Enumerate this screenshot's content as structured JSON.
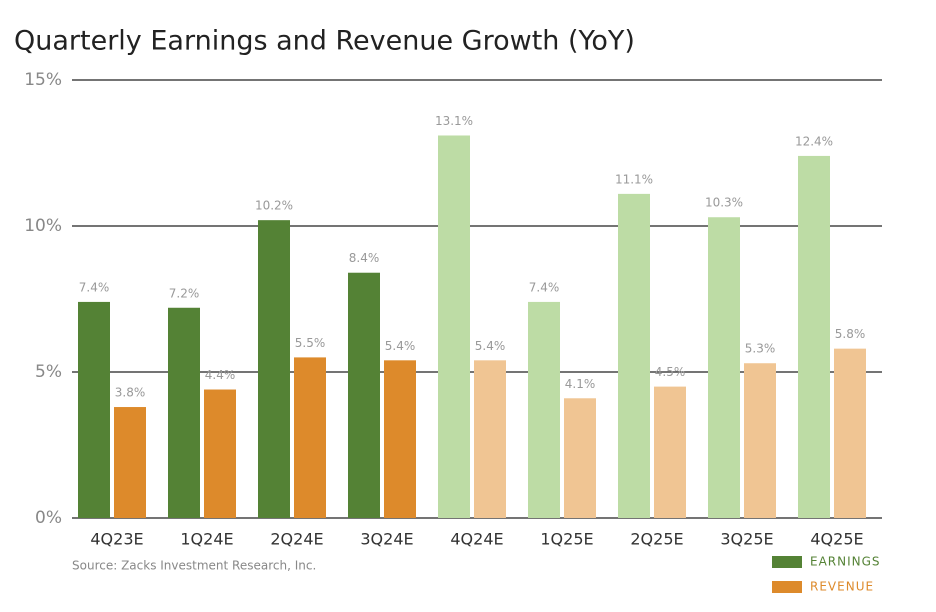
{
  "chart_data": {
    "type": "bar",
    "title": "Quarterly Earnings and Revenue Growth (YoY)",
    "categories": [
      "4Q23E",
      "1Q24E",
      "2Q24E",
      "3Q24E",
      "4Q24E",
      "1Q25E",
      "2Q25E",
      "3Q25E",
      "4Q25E"
    ],
    "series": [
      {
        "name": "EARNINGS",
        "color": "#548235",
        "colors": [
          "#548235",
          "#548235",
          "#548235",
          "#548235",
          "#bddca5",
          "#bddca5",
          "#bddca5",
          "#bddca5",
          "#bddca5"
        ],
        "values": [
          7.4,
          7.2,
          10.2,
          8.4,
          13.1,
          7.4,
          11.1,
          10.3,
          12.4
        ],
        "value_labels": [
          "7.4%",
          "7.2%",
          "10.2%",
          "8.4%",
          "13.1%",
          "7.4%",
          "11.1%",
          "10.3%",
          "12.4%"
        ]
      },
      {
        "name": "REVENUE",
        "color": "#dd8a2b",
        "colors": [
          "#dd8a2b",
          "#dd8a2b",
          "#dd8a2b",
          "#dd8a2b",
          "#f0c593",
          "#f0c593",
          "#f0c593",
          "#f0c593",
          "#f0c593"
        ],
        "values": [
          3.8,
          4.4,
          5.5,
          5.4,
          5.4,
          4.1,
          4.5,
          5.3,
          5.8
        ],
        "value_labels": [
          "3.8%",
          "4.4%",
          "5.5%",
          "5.4%",
          "5.4%",
          "4.1%",
          "4.5%",
          "5.3%",
          "5.8%"
        ]
      }
    ],
    "ylim": [
      0,
      15
    ],
    "yticks": [
      {
        "value": 0,
        "label": "0%"
      },
      {
        "value": 5,
        "label": "5%"
      },
      {
        "value": 10,
        "label": "10%"
      },
      {
        "value": 15,
        "label": "15%"
      }
    ],
    "grid": true,
    "legend": "bottom-right",
    "source": "Source: Zacks Investment Research, Inc."
  }
}
